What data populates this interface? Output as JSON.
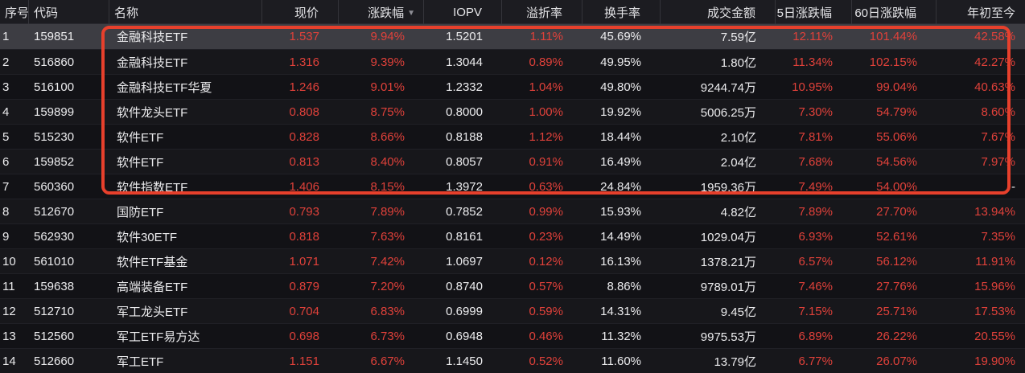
{
  "table": {
    "columns": [
      {
        "key": "seq",
        "label": "序号",
        "align": "left",
        "color": "white"
      },
      {
        "key": "code",
        "label": "代码",
        "align": "left",
        "color": "white"
      },
      {
        "key": "name",
        "label": "名称",
        "align": "left",
        "color": "white"
      },
      {
        "key": "price",
        "label": "现价",
        "align": "right",
        "color": "red"
      },
      {
        "key": "change",
        "label": "涨跌幅",
        "align": "right",
        "color": "red",
        "sorted": "desc"
      },
      {
        "key": "iopv",
        "label": "IOPV",
        "align": "right",
        "color": "white"
      },
      {
        "key": "premium",
        "label": "溢折率",
        "align": "right",
        "color": "red"
      },
      {
        "key": "turnover",
        "label": "换手率",
        "align": "right",
        "color": "white"
      },
      {
        "key": "amount",
        "label": "成交金额",
        "align": "right",
        "color": "white"
      },
      {
        "key": "chg5d",
        "label": "5日涨跌幅",
        "align": "right",
        "color": "red"
      },
      {
        "key": "chg60d",
        "label": "60日涨跌幅",
        "align": "right",
        "color": "red"
      },
      {
        "key": "ytd",
        "label": "年初至今",
        "align": "right",
        "color": "red"
      }
    ],
    "sort_icon": "▼",
    "rows": [
      [
        "1",
        "159851",
        "金融科技ETF",
        "1.537",
        "9.94%",
        "1.5201",
        "1.11%",
        "45.69%",
        "7.59亿",
        "12.11%",
        "101.44%",
        "42.58%"
      ],
      [
        "2",
        "516860",
        "金融科技ETF",
        "1.316",
        "9.39%",
        "1.3044",
        "0.89%",
        "49.95%",
        "1.80亿",
        "11.34%",
        "102.15%",
        "42.27%"
      ],
      [
        "3",
        "516100",
        "金融科技ETF华夏",
        "1.246",
        "9.01%",
        "1.2332",
        "1.04%",
        "49.80%",
        "9244.74万",
        "10.95%",
        "99.04%",
        "40.63%"
      ],
      [
        "4",
        "159899",
        "软件龙头ETF",
        "0.808",
        "8.75%",
        "0.8000",
        "1.00%",
        "19.92%",
        "5006.25万",
        "7.30%",
        "54.79%",
        "8.60%"
      ],
      [
        "5",
        "515230",
        "软件ETF",
        "0.828",
        "8.66%",
        "0.8188",
        "1.12%",
        "18.44%",
        "2.10亿",
        "7.81%",
        "55.06%",
        "7.67%"
      ],
      [
        "6",
        "159852",
        "软件ETF",
        "0.813",
        "8.40%",
        "0.8057",
        "0.91%",
        "16.49%",
        "2.04亿",
        "7.68%",
        "54.56%",
        "7.97%"
      ],
      [
        "7",
        "560360",
        "软件指数ETF",
        "1.406",
        "8.15%",
        "1.3972",
        "0.63%",
        "24.84%",
        "1959.36万",
        "7.49%",
        "54.00%",
        "-"
      ],
      [
        "8",
        "512670",
        "国防ETF",
        "0.793",
        "7.89%",
        "0.7852",
        "0.99%",
        "15.93%",
        "4.82亿",
        "7.89%",
        "27.70%",
        "13.94%"
      ],
      [
        "9",
        "562930",
        "软件30ETF",
        "0.818",
        "7.63%",
        "0.8161",
        "0.23%",
        "14.49%",
        "1029.04万",
        "6.93%",
        "52.61%",
        "7.35%"
      ],
      [
        "10",
        "561010",
        "软件ETF基金",
        "1.071",
        "7.42%",
        "1.0697",
        "0.12%",
        "16.13%",
        "1378.21万",
        "6.57%",
        "56.12%",
        "11.91%"
      ],
      [
        "11",
        "159638",
        "高端装备ETF",
        "0.879",
        "7.20%",
        "0.8740",
        "0.57%",
        "8.86%",
        "9789.01万",
        "7.46%",
        "27.76%",
        "15.96%"
      ],
      [
        "12",
        "512710",
        "军工龙头ETF",
        "0.704",
        "6.83%",
        "0.6999",
        "0.59%",
        "14.31%",
        "9.45亿",
        "7.15%",
        "25.71%",
        "17.53%"
      ],
      [
        "13",
        "512560",
        "军工ETF易方达",
        "0.698",
        "6.73%",
        "0.6948",
        "0.46%",
        "11.32%",
        "9975.53万",
        "6.89%",
        "26.22%",
        "20.55%"
      ],
      [
        "14",
        "512660",
        "军工ETF",
        "1.151",
        "6.67%",
        "1.1450",
        "0.52%",
        "11.60%",
        "13.79亿",
        "6.77%",
        "26.07%",
        "19.90%"
      ]
    ],
    "highlighted_row_index": 0
  },
  "annotation": {
    "type": "red-outline-box",
    "rows_covered": "1-7",
    "color": "#e7402c"
  },
  "colors": {
    "background": "#131317",
    "header_background": "#1c1c21",
    "row_highlight": "#3d3d43",
    "text_white": "#ececee",
    "value_red": "#e0413a",
    "annotation_red": "#e7402c"
  }
}
